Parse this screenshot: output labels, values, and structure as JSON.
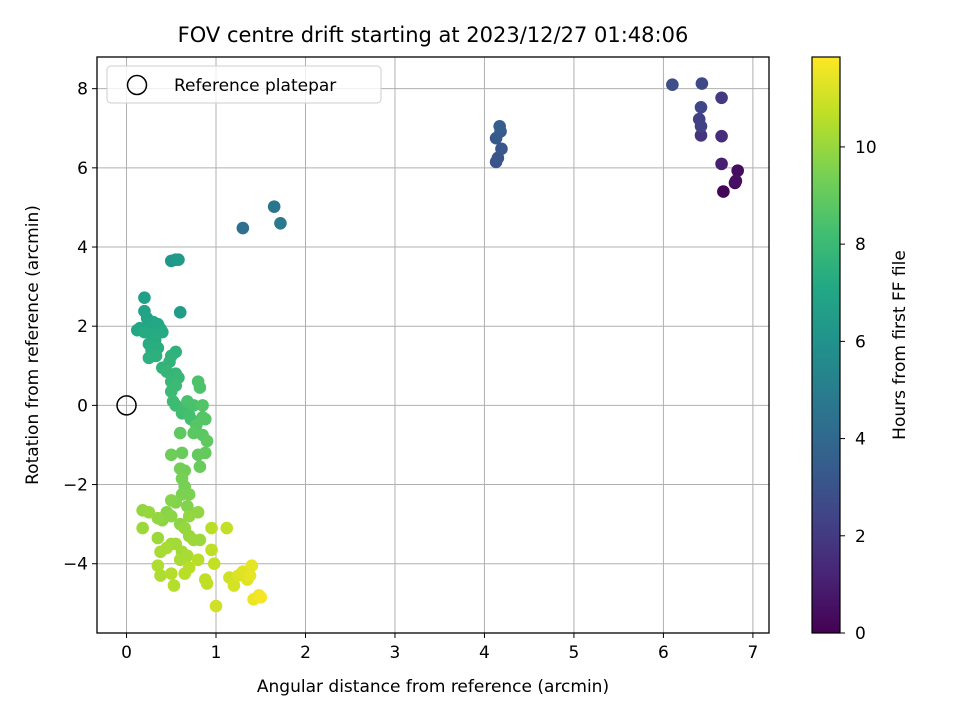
{
  "chart_data": {
    "type": "scatter",
    "title": "FOV centre drift starting at 2023/12/27 01:48:06",
    "xlabel": "Angular distance from reference (arcmin)",
    "ylabel": "Rotation from reference (arcmin)",
    "xlim": [
      -0.33,
      7.18
    ],
    "ylim": [
      -5.75,
      8.8
    ],
    "xticks": [
      0,
      1,
      2,
      3,
      4,
      5,
      6,
      7
    ],
    "yticks": [
      -4,
      -2,
      0,
      2,
      4,
      6,
      8
    ],
    "grid": true,
    "legend": {
      "placement": "top-left",
      "entries": [
        "Reference platepar"
      ]
    },
    "reference_point": {
      "x": 0,
      "y": 0
    },
    "colorbar": {
      "label": "Hours from first FF file",
      "range": [
        0,
        11.85
      ],
      "ticks": [
        0,
        2,
        4,
        6,
        8,
        10
      ],
      "colormap": "viridis"
    },
    "points": [
      [
        6.67,
        5.4,
        0.1
      ],
      [
        6.8,
        5.62,
        0.3
      ],
      [
        6.83,
        5.93,
        0.4
      ],
      [
        6.81,
        5.67,
        0.5
      ],
      [
        6.65,
        6.1,
        1.0
      ],
      [
        6.65,
        6.8,
        1.5
      ],
      [
        6.42,
        6.82,
        1.8
      ],
      [
        6.65,
        7.77,
        2.0
      ],
      [
        6.4,
        7.23,
        2.2
      ],
      [
        6.42,
        7.05,
        2.3
      ],
      [
        6.42,
        7.53,
        2.5
      ],
      [
        6.43,
        8.13,
        2.6
      ],
      [
        6.1,
        8.1,
        2.8
      ],
      [
        4.13,
        6.15,
        3.0
      ],
      [
        4.15,
        6.25,
        3.1
      ],
      [
        4.19,
        6.48,
        3.2
      ],
      [
        4.13,
        6.75,
        3.3
      ],
      [
        4.18,
        6.92,
        3.4
      ],
      [
        4.17,
        7.05,
        3.5
      ],
      [
        1.65,
        5.02,
        4.6
      ],
      [
        1.72,
        4.6,
        4.8
      ],
      [
        1.3,
        4.48,
        4.4
      ],
      [
        0.5,
        3.65,
        6.2
      ],
      [
        0.55,
        3.68,
        6.3
      ],
      [
        0.58,
        3.68,
        6.4
      ],
      [
        0.6,
        2.35,
        6.5
      ],
      [
        0.2,
        2.72,
        6.7
      ],
      [
        0.2,
        2.38,
        6.8
      ],
      [
        0.23,
        2.2,
        6.9
      ],
      [
        0.25,
        2.0,
        7.0
      ],
      [
        0.3,
        2.1,
        7.0
      ],
      [
        0.35,
        2.05,
        7.1
      ],
      [
        0.38,
        1.93,
        7.1
      ],
      [
        0.4,
        1.85,
        7.2
      ],
      [
        0.15,
        1.95,
        7.0
      ],
      [
        0.12,
        1.9,
        7.1
      ],
      [
        0.2,
        1.85,
        7.2
      ],
      [
        0.28,
        1.8,
        7.2
      ],
      [
        0.32,
        1.65,
        7.3
      ],
      [
        0.25,
        1.55,
        7.3
      ],
      [
        0.35,
        1.45,
        7.4
      ],
      [
        0.28,
        1.4,
        7.4
      ],
      [
        0.25,
        1.2,
        7.5
      ],
      [
        0.33,
        1.25,
        7.5
      ],
      [
        0.5,
        1.25,
        7.6
      ],
      [
        0.55,
        1.35,
        7.6
      ],
      [
        0.48,
        1.1,
        7.7
      ],
      [
        0.4,
        0.95,
        7.7
      ],
      [
        0.45,
        0.85,
        7.8
      ],
      [
        0.55,
        0.8,
        7.8
      ],
      [
        0.58,
        0.7,
        7.9
      ],
      [
        0.5,
        0.6,
        7.9
      ],
      [
        0.55,
        0.5,
        8.0
      ],
      [
        0.5,
        0.35,
        8.0
      ],
      [
        0.52,
        0.1,
        8.1
      ],
      [
        0.55,
        0.0,
        8.1
      ],
      [
        0.62,
        -0.2,
        8.2
      ],
      [
        0.65,
        -0.05,
        8.2
      ],
      [
        0.7,
        -0.25,
        8.3
      ],
      [
        0.72,
        -0.35,
        8.3
      ],
      [
        0.75,
        0.0,
        8.4
      ],
      [
        0.68,
        0.1,
        8.4
      ],
      [
        0.8,
        0.6,
        8.5
      ],
      [
        0.82,
        0.45,
        8.5
      ],
      [
        0.85,
        0.0,
        8.6
      ],
      [
        0.85,
        -0.3,
        8.6
      ],
      [
        0.78,
        -0.5,
        8.7
      ],
      [
        0.88,
        -0.35,
        8.7
      ],
      [
        0.85,
        -0.75,
        8.8
      ],
      [
        0.75,
        -0.7,
        8.8
      ],
      [
        0.9,
        -0.9,
        8.9
      ],
      [
        0.88,
        -1.2,
        9.0
      ],
      [
        0.8,
        -1.25,
        9.0
      ],
      [
        0.82,
        -1.55,
        9.1
      ],
      [
        0.6,
        -0.7,
        8.9
      ],
      [
        0.62,
        -1.2,
        9.1
      ],
      [
        0.5,
        -1.25,
        9.2
      ],
      [
        0.6,
        -1.6,
        9.3
      ],
      [
        0.65,
        -1.65,
        9.3
      ],
      [
        0.62,
        -1.85,
        9.4
      ],
      [
        0.65,
        -2.05,
        9.4
      ],
      [
        0.62,
        -2.25,
        9.5
      ],
      [
        0.7,
        -2.25,
        9.5
      ],
      [
        0.68,
        -2.55,
        9.6
      ],
      [
        0.55,
        -2.45,
        9.6
      ],
      [
        0.5,
        -2.4,
        9.7
      ],
      [
        0.45,
        -2.7,
        9.7
      ],
      [
        0.5,
        -2.8,
        9.8
      ],
      [
        0.4,
        -2.9,
        9.8
      ],
      [
        0.35,
        -2.85,
        9.9
      ],
      [
        0.6,
        -3.0,
        9.8
      ],
      [
        0.7,
        -2.8,
        9.9
      ],
      [
        0.8,
        -2.7,
        9.9
      ],
      [
        0.65,
        -3.1,
        10.0
      ],
      [
        0.7,
        -3.3,
        10.0
      ],
      [
        0.75,
        -3.4,
        10.1
      ],
      [
        0.82,
        -3.4,
        10.1
      ],
      [
        0.55,
        -3.5,
        10.2
      ],
      [
        0.62,
        -3.7,
        10.2
      ],
      [
        0.68,
        -3.8,
        10.3
      ],
      [
        0.6,
        -3.9,
        10.3
      ],
      [
        0.5,
        -3.5,
        10.2
      ],
      [
        0.45,
        -3.6,
        10.3
      ],
      [
        0.35,
        -3.35,
        10.1
      ],
      [
        0.38,
        -3.7,
        10.3
      ],
      [
        0.35,
        -4.05,
        10.4
      ],
      [
        0.38,
        -4.3,
        10.4
      ],
      [
        0.5,
        -4.25,
        10.5
      ],
      [
        0.53,
        -4.55,
        10.5
      ],
      [
        0.18,
        -2.65,
        9.9
      ],
      [
        0.25,
        -2.7,
        10.0
      ],
      [
        0.18,
        -3.1,
        10.1
      ],
      [
        0.65,
        -4.25,
        10.6
      ],
      [
        0.7,
        -4.1,
        10.6
      ],
      [
        0.8,
        -3.9,
        10.6
      ],
      [
        0.88,
        -4.4,
        10.7
      ],
      [
        0.9,
        -4.5,
        10.7
      ],
      [
        0.95,
        -3.1,
        10.6
      ],
      [
        0.95,
        -3.65,
        10.7
      ],
      [
        0.98,
        -4.0,
        10.8
      ],
      [
        1.0,
        -5.07,
        11.0
      ],
      [
        1.12,
        -3.1,
        10.8
      ],
      [
        1.15,
        -4.35,
        11.0
      ],
      [
        1.2,
        -4.55,
        11.1
      ],
      [
        1.25,
        -4.3,
        11.2
      ],
      [
        1.3,
        -4.2,
        11.3
      ],
      [
        1.35,
        -4.4,
        11.3
      ],
      [
        1.4,
        -4.05,
        11.4
      ],
      [
        1.38,
        -4.3,
        11.4
      ],
      [
        1.42,
        -4.9,
        11.5
      ],
      [
        1.48,
        -4.8,
        11.6
      ],
      [
        1.5,
        -4.85,
        11.7
      ]
    ]
  }
}
